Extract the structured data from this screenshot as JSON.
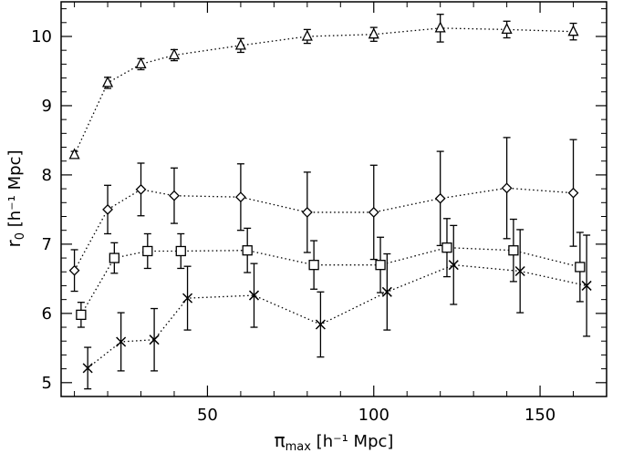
{
  "chart_data": {
    "type": "scatter",
    "title": "",
    "xlabel": {
      "main": "π",
      "sub": "max",
      "rest": " [h⁻¹ Mpc]"
    },
    "ylabel": {
      "main": "r",
      "sub": "0",
      "rest": " [h⁻¹ Mpc]"
    },
    "xlim": [
      6,
      170
    ],
    "ylim": [
      4.8,
      10.5
    ],
    "xticks": [
      50,
      100,
      150
    ],
    "yticks": [
      5,
      6,
      7,
      8,
      9,
      10
    ],
    "grid": false,
    "series": [
      {
        "marker": "triangle",
        "x": [
          10,
          20,
          30,
          40,
          60,
          80,
          100,
          120,
          140,
          160
        ],
        "y": [
          8.29,
          9.33,
          9.6,
          9.73,
          9.87,
          10.0,
          10.03,
          10.12,
          10.1,
          10.07
        ],
        "yerr": [
          0.05,
          0.08,
          0.08,
          0.08,
          0.1,
          0.1,
          0.1,
          0.2,
          0.12,
          0.12
        ]
      },
      {
        "marker": "diamond",
        "x": [
          10,
          20,
          30,
          40,
          60,
          80,
          100,
          120,
          140,
          160
        ],
        "y": [
          6.62,
          7.5,
          7.79,
          7.7,
          7.68,
          7.46,
          7.46,
          7.66,
          7.81,
          7.74
        ],
        "yerr": [
          0.3,
          0.35,
          0.38,
          0.4,
          0.48,
          0.58,
          0.68,
          0.68,
          0.73,
          0.77
        ]
      },
      {
        "marker": "square",
        "x": [
          12,
          22,
          32,
          42,
          62,
          82,
          102,
          122,
          142,
          162
        ],
        "y": [
          5.98,
          6.8,
          6.9,
          6.9,
          6.91,
          6.7,
          6.7,
          6.95,
          6.91,
          6.67
        ],
        "yerr": [
          0.18,
          0.22,
          0.25,
          0.25,
          0.32,
          0.35,
          0.4,
          0.42,
          0.45,
          0.5
        ]
      },
      {
        "marker": "cross",
        "x": [
          14,
          24,
          34,
          44,
          64,
          84,
          104,
          124,
          144,
          164
        ],
        "y": [
          5.21,
          5.59,
          5.62,
          6.22,
          6.26,
          5.84,
          6.31,
          6.7,
          6.61,
          6.4
        ],
        "yerr": [
          0.3,
          0.42,
          0.45,
          0.46,
          0.46,
          0.47,
          0.55,
          0.57,
          0.6,
          0.73
        ]
      }
    ]
  }
}
